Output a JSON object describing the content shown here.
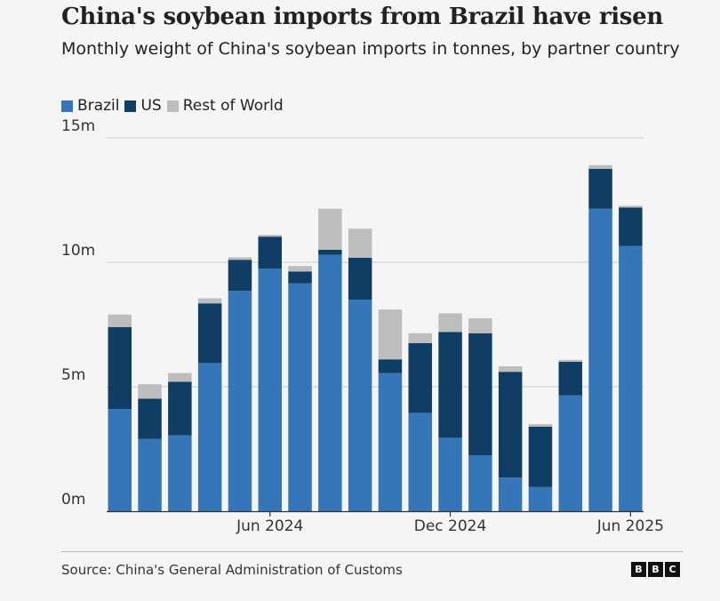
{
  "title": "China's soybean imports from Brazil have risen",
  "subtitle": "Monthly weight of China's soybean imports in tonnes, by partner country",
  "colors": {
    "Brazil": "#3476b8",
    "US": "#0f3d63",
    "Rest of World": "#bdbdbd",
    "grid": "#cccccc",
    "axis": "#333333"
  },
  "legend": [
    {
      "name": "Brazil",
      "color": "#3476b8"
    },
    {
      "name": "US",
      "color": "#0f3d63"
    },
    {
      "name": "Rest of World",
      "color": "#bdbdbd"
    }
  ],
  "source": "Source: China's General Administration of Customs",
  "logo": [
    "B",
    "B",
    "C"
  ],
  "chart_data": {
    "type": "bar",
    "stacked": true,
    "categories": [
      "2024-01",
      "2024-02",
      "2024-03",
      "2024-04",
      "2024-05",
      "2024-06",
      "2024-07",
      "2024-08",
      "2024-09",
      "2024-10",
      "2024-11",
      "2024-12",
      "2025-01",
      "2025-02",
      "2025-03",
      "2025-04",
      "2025-05",
      "2025-06"
    ],
    "x_tick_labels": [
      {
        "category": "2024-06",
        "label": "Jun 2024"
      },
      {
        "category": "2024-12",
        "label": "Dec 2024"
      },
      {
        "category": "2025-06",
        "label": "Jun 2025"
      }
    ],
    "series": [
      {
        "name": "Brazil",
        "values": [
          4.1,
          2.9,
          3.05,
          5.95,
          8.85,
          9.75,
          9.15,
          10.3,
          8.5,
          5.55,
          3.95,
          2.95,
          2.25,
          1.35,
          0.97,
          4.65,
          12.15,
          10.65
        ]
      },
      {
        "name": "US",
        "values": [
          3.3,
          1.62,
          2.15,
          2.4,
          1.25,
          1.28,
          0.48,
          0.2,
          1.68,
          0.55,
          2.8,
          4.25,
          4.9,
          4.25,
          2.43,
          1.35,
          1.6,
          1.55
        ]
      },
      {
        "name": "Rest of World",
        "values": [
          0.5,
          0.58,
          0.35,
          0.2,
          0.1,
          0.07,
          0.22,
          1.65,
          1.17,
          2.0,
          0.4,
          0.75,
          0.6,
          0.22,
          0.1,
          0.08,
          0.15,
          0.07
        ]
      }
    ],
    "ylim": [
      0,
      15
    ],
    "yticks": [
      0,
      5,
      10,
      15
    ],
    "ytick_labels": [
      "0m",
      "5m",
      "10m",
      "15m"
    ],
    "grid": true,
    "legend_position": "top-left"
  }
}
